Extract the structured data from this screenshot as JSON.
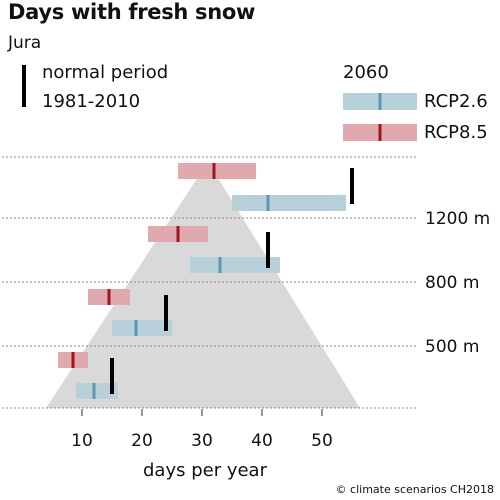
{
  "title": "Days with fresh snow",
  "subtitle": "Jura",
  "legend": {
    "normal_line1": "normal period",
    "normal_line2": "1981-2010",
    "scenario_year": "2060",
    "rcp26": "RCP2.6",
    "rcp85": "RCP8.5"
  },
  "copyright": "© climate scenarios CH2018",
  "colors": {
    "rcp26": "#b7d0da",
    "rcp26_median": "#5e97b0",
    "rcp85": "#dfa9ad",
    "rcp85_median": "#a3121f",
    "normal": "#000000",
    "mountain": "#d9d9d9"
  },
  "chart_data": {
    "type": "range-bar",
    "title": "Days with fresh snow",
    "subtitle": "Jura",
    "xlabel": "days per year",
    "xlim": [
      0,
      57
    ],
    "xticks": [
      10,
      20,
      30,
      40,
      50
    ],
    "elevation_levels": [
      "1200 m",
      "800 m",
      "500 m"
    ],
    "groups": [
      {
        "elevation": "above 1200 m",
        "normal": 55,
        "rcp26": {
          "low": 35,
          "median": 41,
          "high": 54
        },
        "rcp85": {
          "low": 26,
          "median": 32,
          "high": 39
        }
      },
      {
        "elevation": "800–1200 m",
        "normal": 41,
        "rcp26": {
          "low": 28,
          "median": 33,
          "high": 43
        },
        "rcp85": {
          "low": 21,
          "median": 26,
          "high": 31
        }
      },
      {
        "elevation": "500–800 m",
        "normal": 24,
        "rcp26": {
          "low": 15,
          "median": 19,
          "high": 25
        },
        "rcp85": {
          "low": 11,
          "median": 14.5,
          "high": 18
        }
      },
      {
        "elevation": "below 500 m",
        "normal": 15,
        "rcp26": {
          "low": 9,
          "median": 12,
          "high": 16
        },
        "rcp85": {
          "low": 6,
          "median": 8.5,
          "high": 11
        }
      }
    ]
  }
}
